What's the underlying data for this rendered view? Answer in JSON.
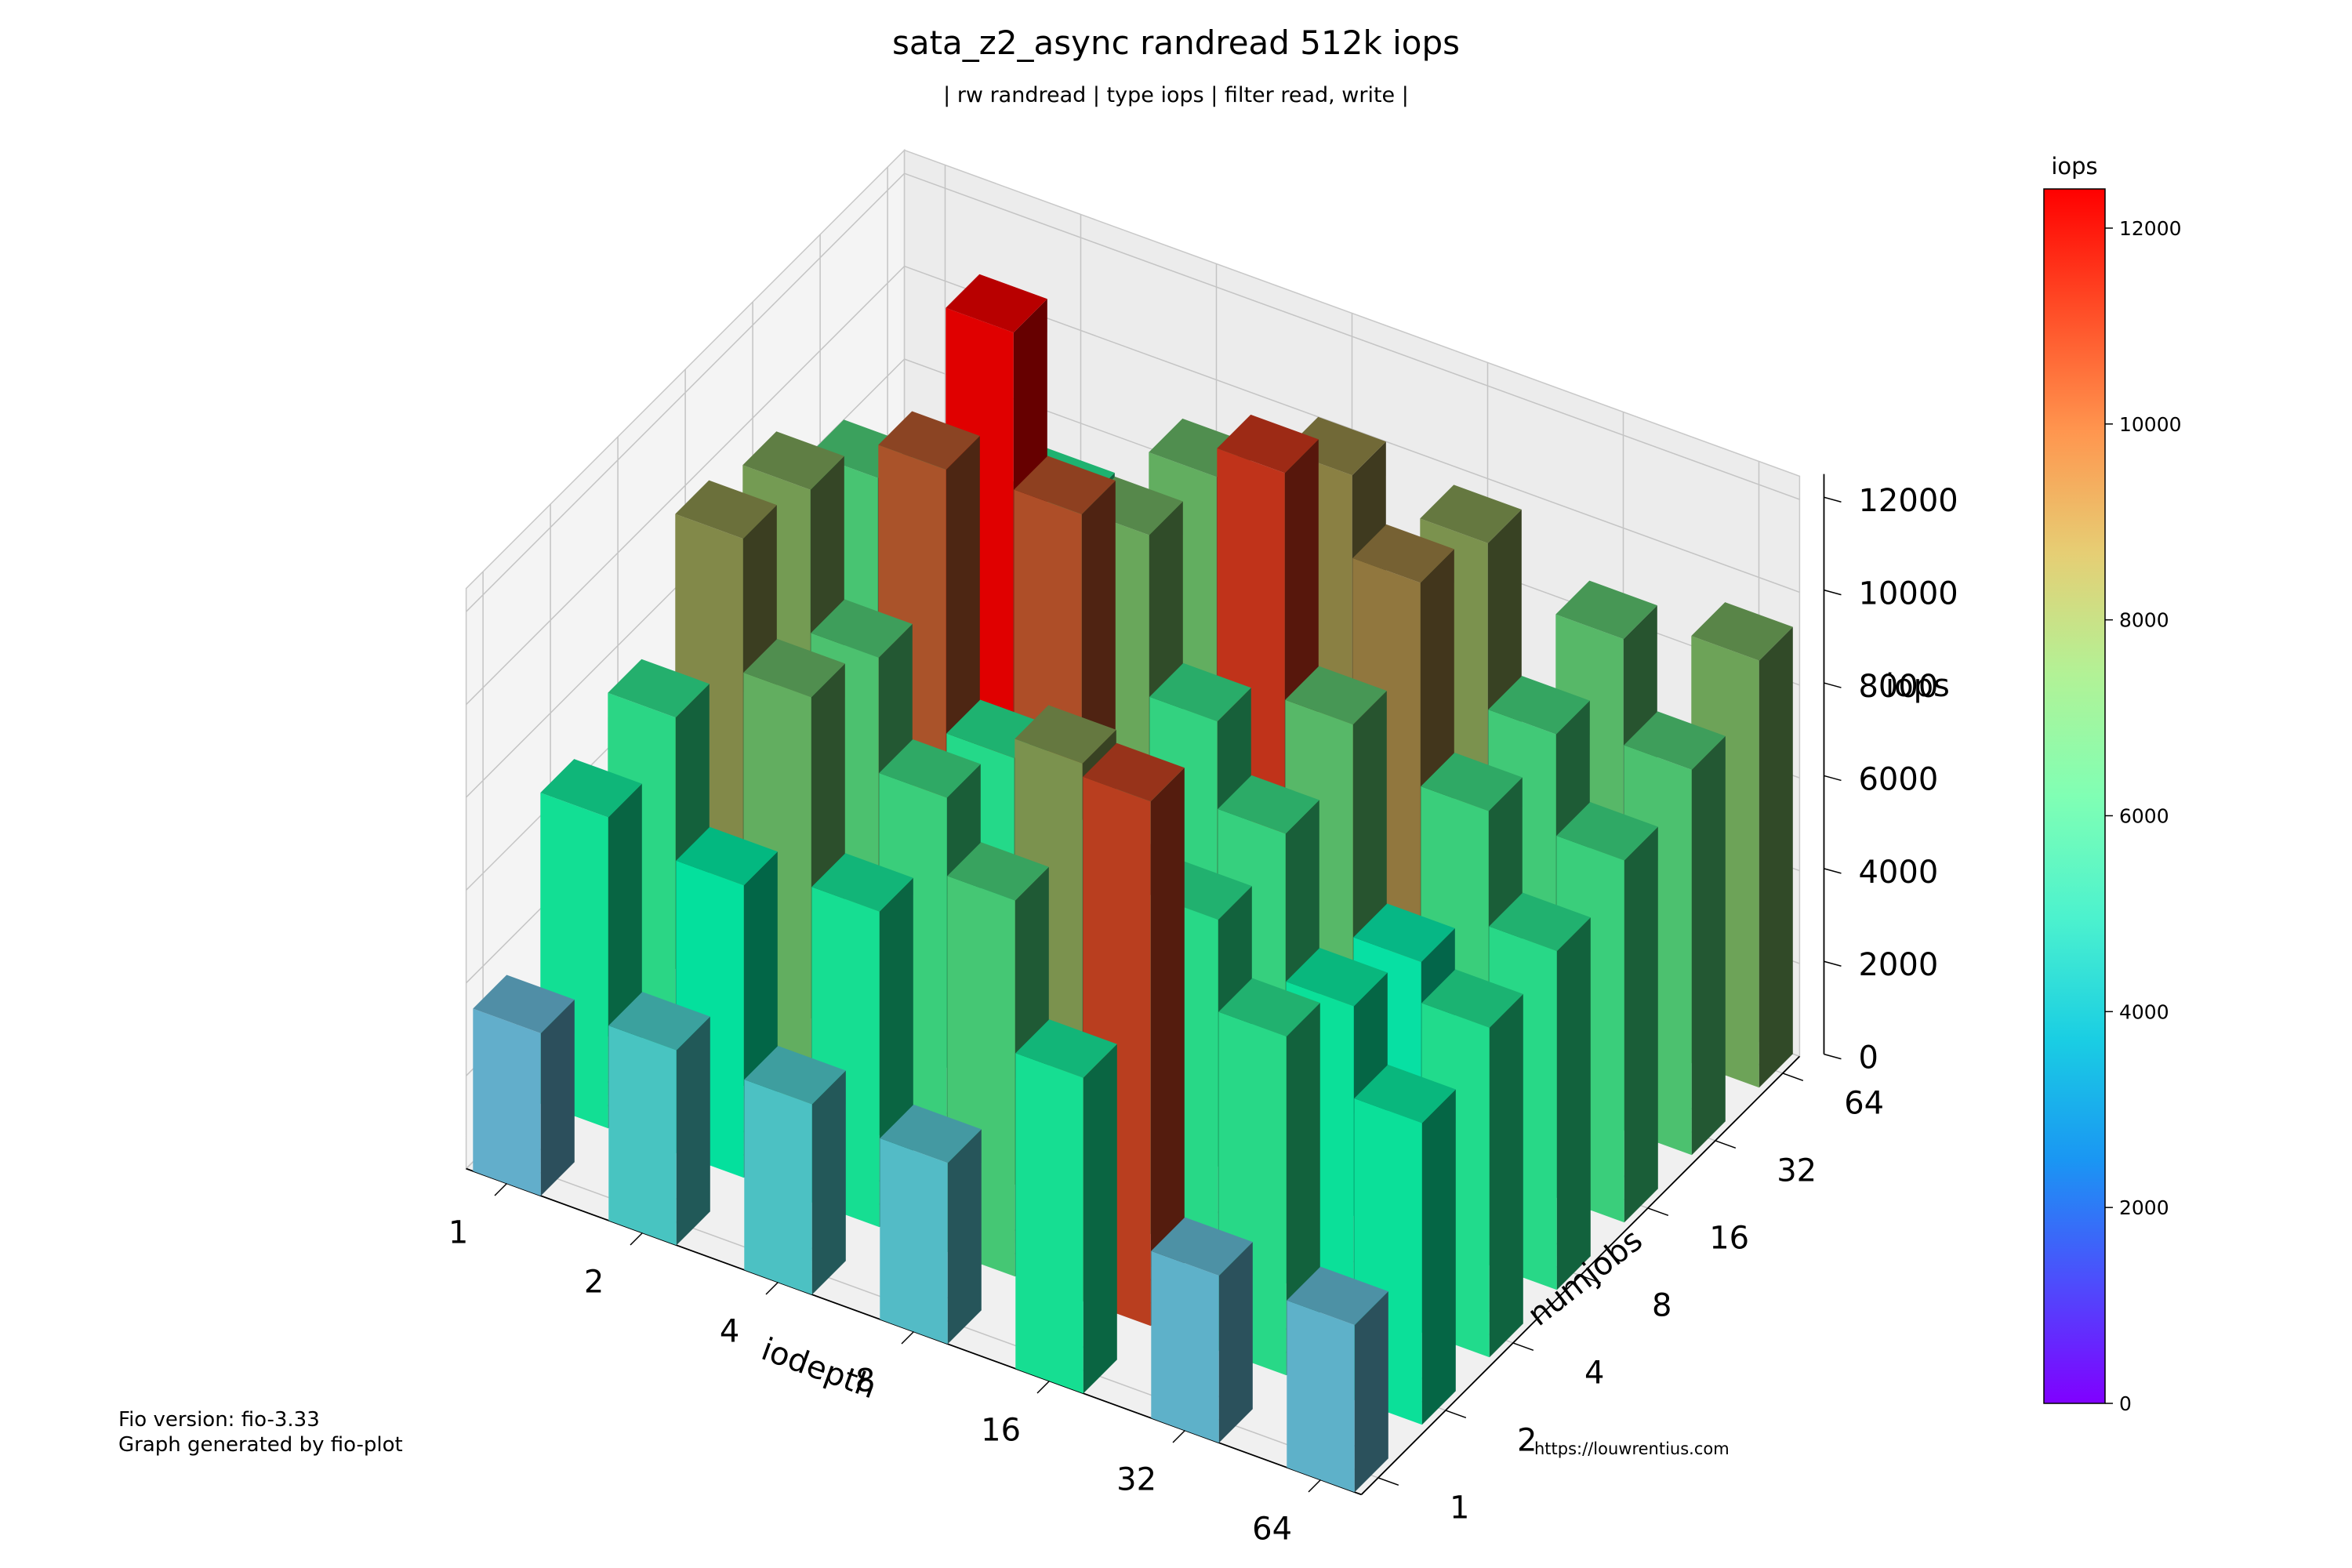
{
  "title": "sata_z2_async randread 512k iops",
  "subtitle": "| rw randread | type iops | filter read, write |",
  "footer": {
    "fio_version": "Fio version: fio-3.33",
    "generated_by": "Graph generated by fio-plot",
    "url": "https://louwrentius.com"
  },
  "chart_data": {
    "type": "bar3d",
    "xlabel": "iodepth",
    "ylabel": "numjobs",
    "zlabel": "iops",
    "x_categories": [
      "1",
      "2",
      "4",
      "8",
      "16",
      "32",
      "64"
    ],
    "y_categories": [
      "1",
      "2",
      "4",
      "8",
      "16",
      "32",
      "64"
    ],
    "zlim": [
      0,
      12500
    ],
    "z_ticks": [
      0,
      2000,
      4000,
      6000,
      8000,
      10000,
      12000
    ],
    "colorbar": {
      "label": "iops",
      "range": [
        0,
        12400
      ],
      "ticks": [
        0,
        2000,
        4000,
        6000,
        8000,
        10000,
        12000
      ],
      "colormap": "rainbow"
    },
    "grid": true,
    "values": [
      [
        3500,
        4200,
        4100,
        3900,
        6800,
        3600,
        3600
      ],
      [
        6700,
        6300,
        6800,
        8100,
        11300,
        7300,
        6500
      ],
      [
        7400,
        8900,
        7800,
        9600,
        7300,
        6500,
        7100
      ],
      [
        9800,
        8300,
        7200,
        6400,
        7700,
        6000,
        7300
      ],
      [
        9400,
        10900,
        11000,
        7600,
        8600,
        7800,
        7800
      ],
      [
        8200,
        12400,
        9100,
        11500,
        10200,
        8000,
        8300
      ],
      [
        6500,
        7200,
        8900,
        10000,
        9600,
        8600,
        9200
      ]
    ]
  }
}
